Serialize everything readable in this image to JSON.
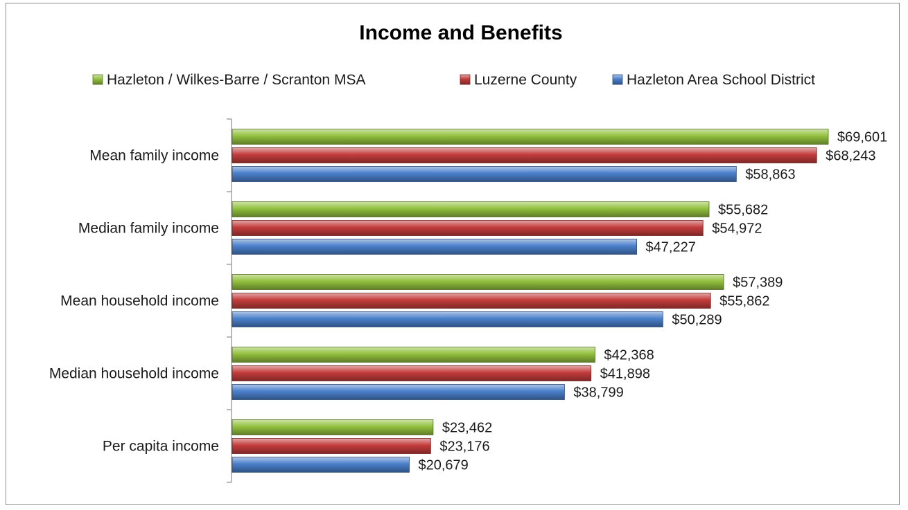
{
  "chart_data": {
    "type": "bar",
    "orientation": "horizontal",
    "title": "Income and Benefits",
    "categories": [
      "Mean family income",
      "Median family income",
      "Mean household income",
      "Median household income",
      "Per capita income"
    ],
    "series": [
      {
        "name": "Hazleton / Wilkes-Barre / Scranton MSA",
        "color": "#92c13e",
        "values": [
          69601,
          55682,
          57389,
          42368,
          23462
        ],
        "labels": [
          "$69,601",
          "$55,682",
          "$57,389",
          "$42,368",
          "$23,462"
        ]
      },
      {
        "name": "Luzerne County",
        "color": "#c43c3c",
        "values": [
          68243,
          54972,
          55862,
          41898,
          23176
        ],
        "labels": [
          "$68,243",
          "$54,972",
          "$55,862",
          "$41,898",
          "$23,176"
        ]
      },
      {
        "name": "Hazleton Area School District",
        "color": "#4a7fcb",
        "values": [
          58863,
          47227,
          50289,
          38799,
          20679
        ],
        "labels": [
          "$58,863",
          "$47,227",
          "$50,289",
          "$38,799",
          "$20,679"
        ]
      }
    ],
    "xlim": [
      0,
      70000
    ],
    "grid": false,
    "legend_position": "top"
  }
}
